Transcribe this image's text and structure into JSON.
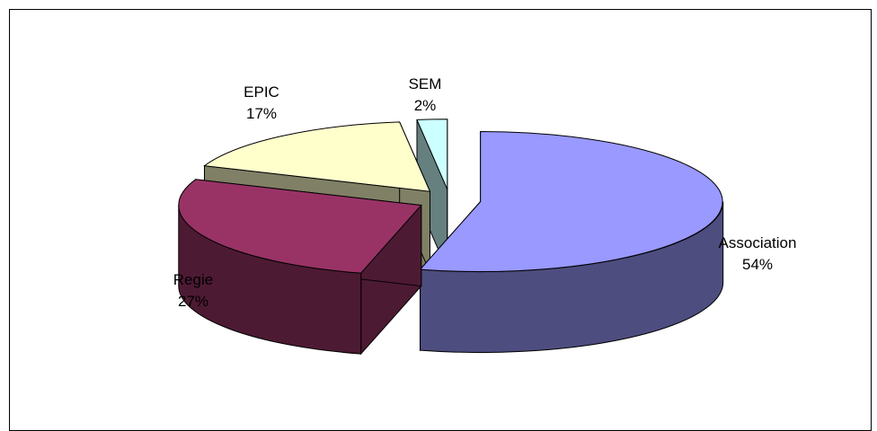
{
  "chart_data": {
    "type": "pie",
    "style": "3d-exploded",
    "title": "",
    "slices": [
      {
        "label": "Association",
        "value": 54,
        "value_label": "54%",
        "top_color": "#9999FF",
        "side_color": "#4D4D80"
      },
      {
        "label": "Regie",
        "value": 27,
        "value_label": "27%",
        "top_color": "#993366",
        "side_color": "#4D1A33"
      },
      {
        "label": "EPIC",
        "value": 17,
        "value_label": "17%",
        "top_color": "#FFFFCC",
        "side_color": "#808066"
      },
      {
        "label": "SEM",
        "value": 2,
        "value_label": "2%",
        "top_color": "#CCFFFF",
        "side_color": "#668080"
      }
    ],
    "legend": "none"
  }
}
